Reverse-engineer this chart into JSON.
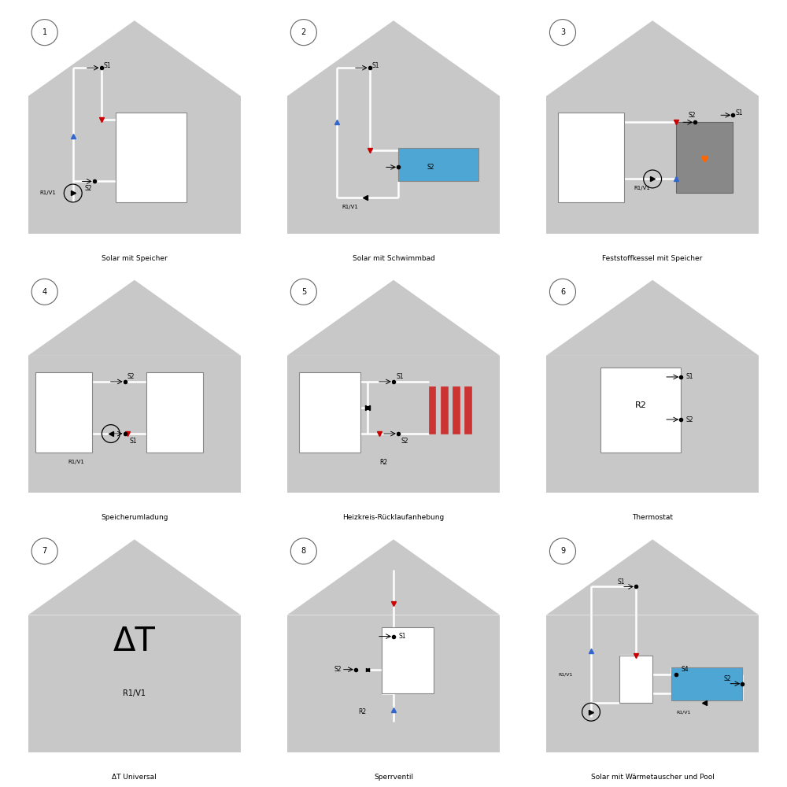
{
  "background_color": "#ffffff",
  "house_color": "#c8c8c8",
  "tank_color": "#ffffff",
  "pool_color": "#4da6d4",
  "pipe_color": "#ffffff",
  "pipe_lw": 1.8,
  "label_color": "#000000",
  "red_dot": "#cc0000",
  "blue_dot": "#3366cc",
  "titles": [
    "Solar mit Speicher",
    "Solar mit Schwimmbad",
    "Feststoffkessel mit Speicher",
    "Speicherumladung",
    "Heizkreis-Rücklaufanhebung",
    "Thermostat",
    "ΔT Universal",
    "Sperrventil",
    "Solar mit Wärmetauscher und Pool"
  ],
  "numbers": [
    "1",
    "2",
    "3",
    "4",
    "5",
    "6",
    "7",
    "8",
    "9"
  ]
}
